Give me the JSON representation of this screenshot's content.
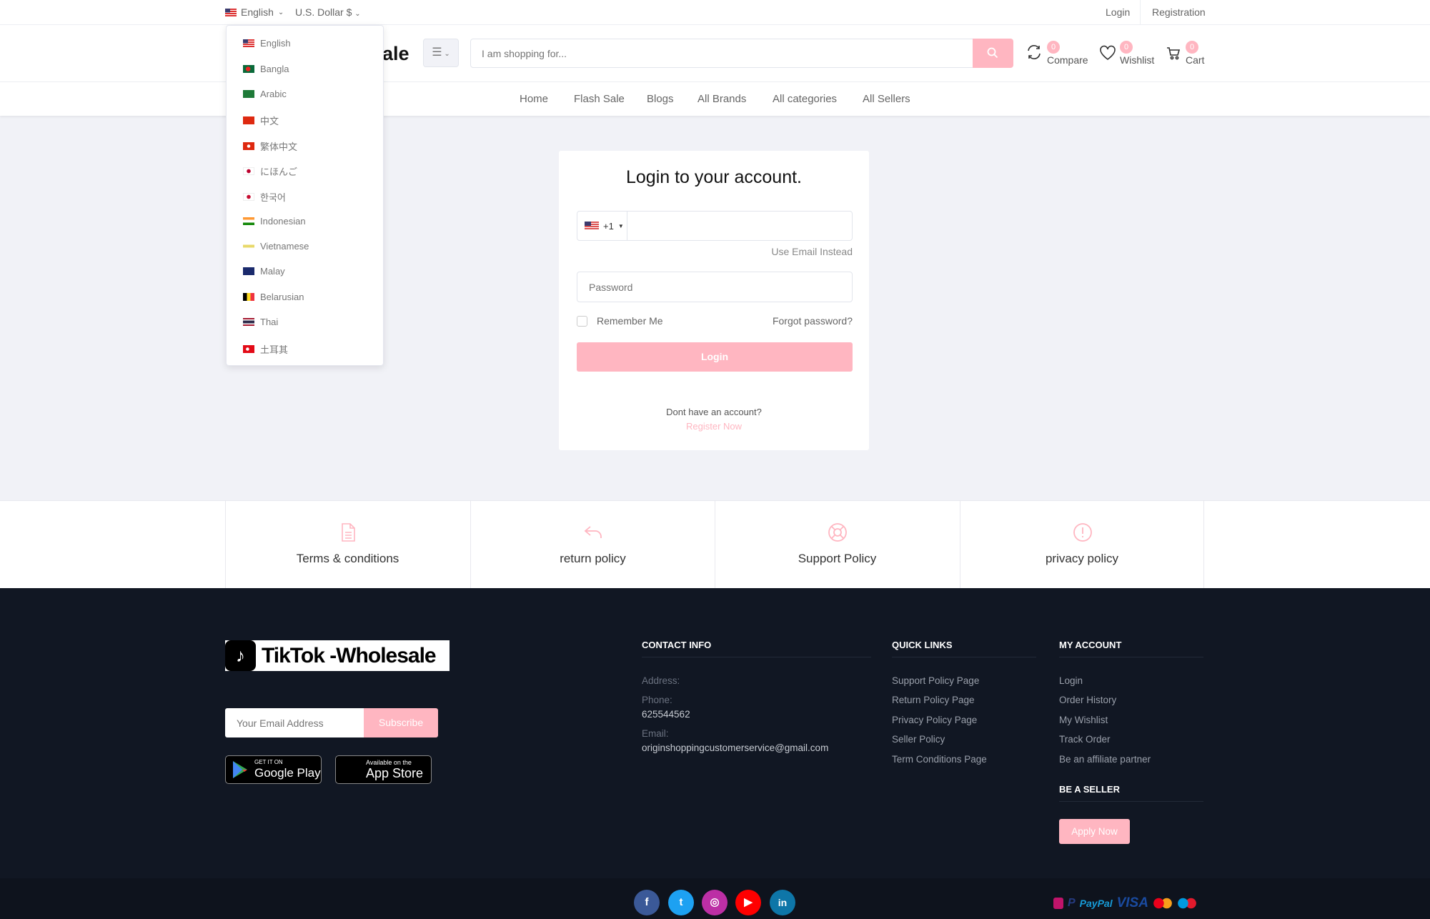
{
  "topbar": {
    "language": "English",
    "currency": "U.S. Dollar $",
    "login": "Login",
    "registration": "Registration"
  },
  "header": {
    "logo_partial": "sale",
    "search_placeholder": "I am shopping for...",
    "compare": {
      "label": "Compare",
      "count": "0"
    },
    "wishlist": {
      "label": "Wishlist",
      "count": "0"
    },
    "cart": {
      "label": "Cart",
      "count": "0"
    }
  },
  "nav": [
    "Home",
    "Flash Sale",
    "Blogs",
    "All Brands",
    "All categories",
    "All Sellers"
  ],
  "languages": [
    "English",
    "Bangla",
    "Arabic",
    "中文",
    "繁体中文",
    "にほんご",
    "한국어",
    "Indonesian",
    "Vietnamese",
    "Malay",
    "Belarusian",
    "Thai",
    "土耳其"
  ],
  "login": {
    "title": "Login to your account.",
    "country_code": "+1",
    "use_email": "Use Email Instead",
    "password_placeholder": "Password",
    "remember": "Remember Me",
    "forgot": "Forgot password?",
    "button": "Login",
    "no_account": "Dont have an account?",
    "register": "Register Now"
  },
  "policies": [
    "Terms & conditions",
    "return policy",
    "Support Policy",
    "privacy policy"
  ],
  "footer": {
    "logo_text": "TikTok -Wholesale",
    "email_placeholder": "Your Email Address",
    "subscribe": "Subscribe",
    "google_play": {
      "small": "GET IT ON",
      "big": "Google Play"
    },
    "app_store": {
      "small": "Available on the",
      "big": "App Store"
    },
    "contact": {
      "heading": "CONTACT INFO",
      "address_label": "Address:",
      "phone_label": "Phone:",
      "phone": "625544562",
      "email_label": "Email:",
      "email": "originshoppingcustomerservice@gmail.com"
    },
    "quick_links": {
      "heading": "QUICK LINKS",
      "items": [
        "Support Policy Page",
        "Return Policy Page",
        "Privacy Policy Page",
        "Seller Policy",
        "Term Conditions Page"
      ]
    },
    "my_account": {
      "heading": "MY ACCOUNT",
      "items": [
        "Login",
        "Order History",
        "My Wishlist",
        "Track Order",
        "Be an affiliate partner"
      ]
    },
    "seller": {
      "heading": "BE A SELLER",
      "button": "Apply Now"
    },
    "social": [
      "facebook",
      "twitter",
      "instagram",
      "youtube",
      "linkedin"
    ],
    "payments": [
      "PayPal",
      "VISA"
    ]
  },
  "colors": {
    "accent": "#ffb6c1",
    "footer_bg": "#111723"
  }
}
